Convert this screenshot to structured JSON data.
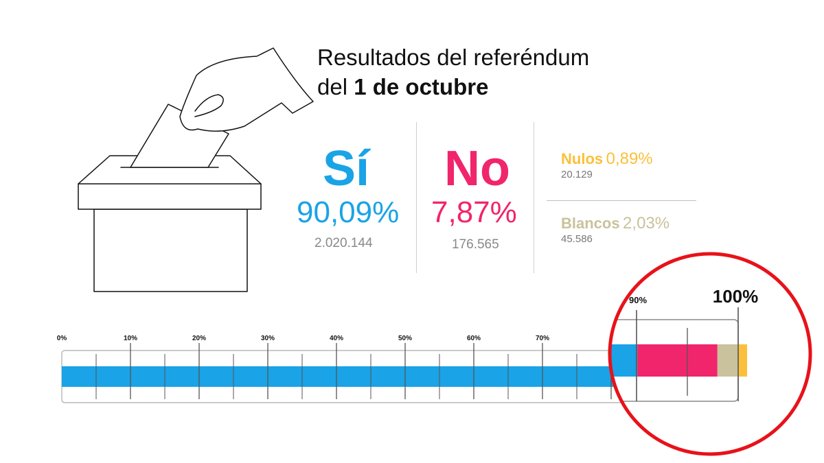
{
  "title": {
    "line1": "Resultados del referéndum",
    "line2_prefix": "del ",
    "line2_bold": "1 de octubre"
  },
  "results": {
    "si": {
      "label": "Sí",
      "percent": "90,09%",
      "votes": "2.020.144",
      "color": "#1aa3e6"
    },
    "no": {
      "label": "No",
      "percent": "7,87%",
      "votes": "176.565",
      "color": "#f0256b"
    },
    "nulos": {
      "label": "Nulos",
      "percent": "0,89%",
      "votes": "20.129",
      "color": "#fbc03b"
    },
    "blancos": {
      "label": "Blancos",
      "percent": "2,03%",
      "votes": "45.586",
      "color": "#c9c29c"
    }
  },
  "chart_data": {
    "type": "bar",
    "orientation": "horizontal-stacked",
    "xlim": [
      0,
      100
    ],
    "tick_labels": [
      "0%",
      "10%",
      "20%",
      "30%",
      "40%",
      "50%",
      "60%",
      "70%"
    ],
    "series": [
      {
        "name": "Sí",
        "values": [
          90.09
        ]
      },
      {
        "name": "No",
        "values": [
          7.87
        ]
      },
      {
        "name": "Blancos",
        "values": [
          2.03
        ]
      },
      {
        "name": "Nulos",
        "values": [
          0.89
        ]
      }
    ],
    "colors": [
      "#1aa3e6",
      "#f0256b",
      "#c9c29c",
      "#fbc03b"
    ],
    "zoom": {
      "start_label": "90%",
      "end_label": "100%",
      "outline_color": "#e8121a"
    }
  }
}
